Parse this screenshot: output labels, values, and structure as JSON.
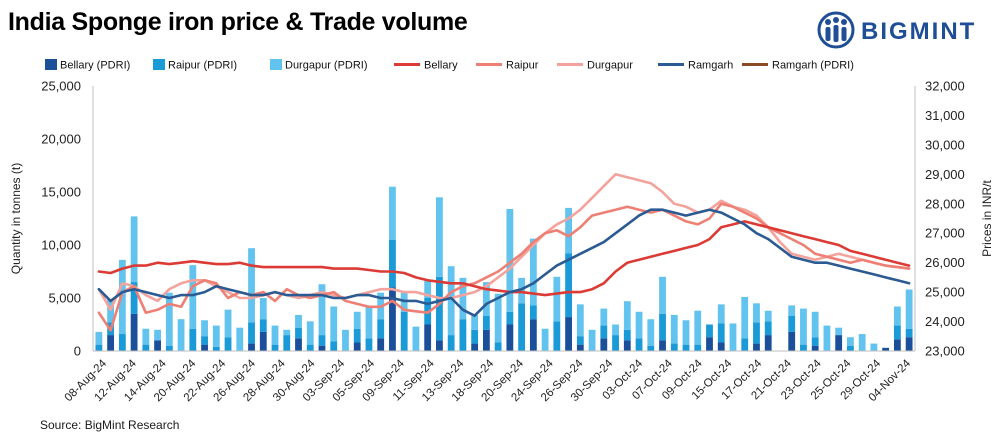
{
  "title": "India Sponge iron price & Trade volume",
  "source": "Source: BigMint Research",
  "logo_text": "BIGMINT",
  "colors": {
    "bellary_pdri": "#1b4f9a",
    "raipur_pdri": "#1a9ad6",
    "durgapur_pdri": "#62c3ee",
    "bellary": "#dc3a34",
    "raipur": "#ee7f74",
    "durgapur": "#f3a39b",
    "ramgarh": "#2b5b92",
    "ramgarh_pdri": "#8b4a21",
    "logo": "#1f4e96"
  },
  "chart_data": {
    "type": "bar",
    "title": "India Sponge iron price & Trade volume",
    "ylabel": "Quantity in tonnes (t)",
    "y2label": "Prices in INR/t",
    "ylim": [
      0,
      25000
    ],
    "y2lim": [
      23000,
      32000
    ],
    "y_ticks": [
      "0",
      "5,000",
      "10,000",
      "15,000",
      "20,000",
      "25,000"
    ],
    "y2_ticks": [
      "23,000",
      "24,000",
      "25,000",
      "26,000",
      "27,000",
      "28,000",
      "29,000",
      "30,000",
      "31,000",
      "32,000"
    ],
    "legend": [
      "Bellary (PDRI)",
      "Raipur (PDRI)",
      "Durgapur (PDRI)",
      "Bellary",
      "Raipur",
      "Durgapur",
      "Ramgarh",
      "Ramgarh (PDRI)"
    ],
    "x_tick_labels": [
      "08-Aug-24",
      "12-Aug-24",
      "14-Aug-24",
      "20-Aug-24",
      "22-Aug-24",
      "26-Aug-24",
      "28-Aug-24",
      "30-Aug-24",
      "03-Sep-24",
      "05-Sep-24",
      "09-Sep-24",
      "11-Sep-24",
      "13-Sep-24",
      "18-Sep-24",
      "20-Sep-24",
      "24-Sep-24",
      "26-Sep-24",
      "30-Sep-24",
      "03-Oct-24",
      "07-Oct-24",
      "09-Oct-24",
      "15-Oct-24",
      "17-Oct-24",
      "21-Oct-24",
      "23-Oct-24",
      "25-Oct-24",
      "29-Oct-24",
      "04-Nov-24"
    ],
    "bars": {
      "bellary_pdri": [
        0,
        1500,
        0,
        3500,
        0,
        1000,
        0,
        0,
        0,
        600,
        0,
        0,
        0,
        700,
        1800,
        0,
        0,
        1200,
        0,
        500,
        0,
        0,
        800,
        0,
        1200,
        6000,
        0,
        0,
        2500,
        1000,
        0,
        0,
        700,
        2000,
        0,
        2500,
        0,
        3000,
        0,
        0,
        3200,
        600,
        0,
        1200,
        0,
        1000,
        0,
        0,
        1000,
        0,
        0,
        0,
        1300,
        800,
        0,
        0,
        700,
        1500,
        0,
        1800,
        0,
        500,
        0,
        1500,
        0,
        0,
        0,
        300,
        1100,
        1300
      ],
      "raipur_pdri": [
        600,
        1200,
        1600,
        3000,
        600,
        0,
        500,
        0,
        2100,
        800,
        400,
        1300,
        0,
        2000,
        1200,
        600,
        1500,
        1000,
        600,
        1000,
        900,
        0,
        1300,
        1200,
        1800,
        4500,
        3700,
        0,
        2500,
        6000,
        1500,
        3000,
        1300,
        1300,
        800,
        1200,
        4500,
        1300,
        0,
        2800,
        6000,
        800,
        0,
        1200,
        1500,
        1000,
        1200,
        500,
        2500,
        700,
        600,
        600,
        1200,
        1800,
        0,
        1200,
        2000,
        1300,
        0,
        1500,
        600,
        800,
        0,
        0,
        500,
        0,
        0,
        0,
        1300,
        800
      ],
      "durgapur_pdri": [
        1200,
        2200,
        7000,
        6200,
        1500,
        1000,
        5000,
        3000,
        6000,
        1500,
        2000,
        2600,
        2200,
        7000,
        2000,
        1800,
        500,
        1200,
        2200,
        4800,
        3300,
        2000,
        1600,
        3000,
        2500,
        5000,
        1800,
        2300,
        1700,
        7500,
        6500,
        3900,
        1400,
        3200,
        4600,
        9700,
        2400,
        6300,
        2100,
        4200,
        4300,
        3000,
        2000,
        1600,
        1000,
        2700,
        2500,
        2500,
        3500,
        2700,
        2300,
        3200,
        0,
        1800,
        2600,
        3900,
        1800,
        1000,
        0,
        1000,
        3400,
        2400,
        2400,
        700,
        800,
        1600,
        700,
        0,
        1800,
        3700
      ]
    },
    "lines": {
      "bellary": [
        25700,
        25650,
        25800,
        25900,
        25900,
        26000,
        25950,
        26000,
        26050,
        26000,
        25950,
        25950,
        26000,
        25900,
        25850,
        25850,
        25850,
        25850,
        25850,
        25850,
        25800,
        25800,
        25800,
        25750,
        25700,
        25700,
        25650,
        25500,
        25400,
        25350,
        25300,
        25300,
        25200,
        25100,
        25050,
        25000,
        25000,
        24950,
        24900,
        24950,
        25000,
        25000,
        25100,
        25300,
        25700,
        26000,
        26100,
        26200,
        26300,
        26400,
        26500,
        26600,
        26800,
        27200,
        27300,
        27400,
        27300,
        27200,
        27100,
        27000,
        26900,
        26800,
        26700,
        26600,
        26400,
        26300,
        26200,
        26100,
        26000,
        25900
      ],
      "raipur": [
        24300,
        23700,
        25000,
        25200,
        24300,
        24400,
        24600,
        24500,
        25200,
        25400,
        25300,
        24800,
        25000,
        24900,
        25000,
        24700,
        25100,
        24900,
        24800,
        24900,
        25000,
        24700,
        24600,
        24500,
        24500,
        24700,
        24400,
        24350,
        24300,
        24600,
        25000,
        25200,
        25300,
        25500,
        25700,
        26000,
        26300,
        26700,
        27000,
        27100,
        26900,
        27200,
        27600,
        27700,
        27800,
        27900,
        27800,
        27700,
        27800,
        27600,
        27400,
        27300,
        27500,
        28000,
        27900,
        27700,
        27500,
        27200,
        27000,
        26800,
        26600,
        26300,
        26200,
        26100,
        26000,
        26100,
        26000,
        25900,
        25850,
        25800
      ],
      "durgapur": [
        25100,
        24400,
        25300,
        25200,
        24900,
        24700,
        25100,
        25300,
        25400,
        25400,
        25200,
        25000,
        24800,
        24800,
        24900,
        25000,
        24900,
        24800,
        24900,
        25000,
        24900,
        24800,
        24900,
        25000,
        25100,
        25100,
        25000,
        25000,
        24900,
        24800,
        24800,
        24900,
        25000,
        25200,
        25500,
        25800,
        26200,
        26600,
        27000,
        27300,
        27500,
        27800,
        28200,
        28600,
        29000,
        28900,
        28800,
        28700,
        28400,
        28000,
        27900,
        27700,
        27800,
        28100,
        27900,
        27800,
        27600,
        27200,
        26700,
        26300,
        26200,
        26100,
        26200,
        26300,
        26200,
        26100,
        26000,
        25900,
        25850,
        25800
      ],
      "ramgarh": [
        25100,
        24700,
        25000,
        25100,
        25000,
        24900,
        24800,
        24900,
        24900,
        25000,
        25200,
        25100,
        25000,
        24900,
        24900,
        25000,
        24900,
        24900,
        24900,
        24900,
        24800,
        24800,
        24900,
        24900,
        24800,
        24800,
        24700,
        24700,
        24600,
        24700,
        24800,
        24400,
        24200,
        24600,
        24800,
        25000,
        25100,
        25300,
        25600,
        25900,
        26100,
        26300,
        26500,
        26700,
        27000,
        27300,
        27600,
        27800,
        27800,
        27700,
        27600,
        27700,
        27800,
        27700,
        27500,
        27300,
        27000,
        26800,
        26500,
        26200,
        26100,
        26000,
        26000,
        25900,
        25800,
        25700,
        25600,
        25500,
        25400,
        25300
      ]
    }
  }
}
